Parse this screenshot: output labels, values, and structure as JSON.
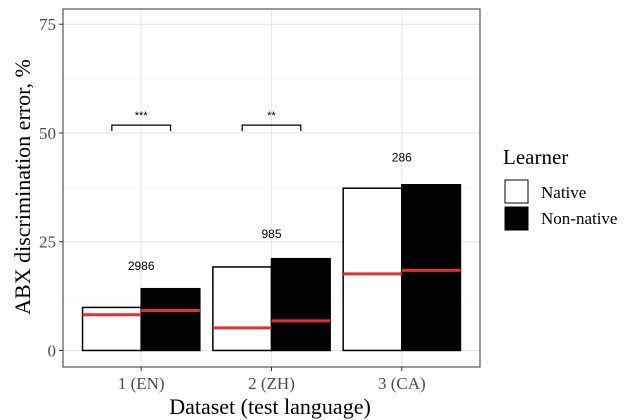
{
  "chart_data": {
    "type": "bar",
    "xlabel": "Dataset (test language)",
    "ylabel": "ABX discrimination error, %",
    "ylim": [
      -3.8,
      78.5
    ],
    "yticks": [
      0,
      25,
      50,
      75
    ],
    "categories": [
      "1 (EN)",
      "2 (ZH)",
      "3 (CA)"
    ],
    "series": [
      {
        "name": "Native",
        "fill": "#ffffff",
        "values": [
          9.9,
          19.2,
          37.3
        ],
        "medians": [
          8.2,
          5.2,
          17.6
        ]
      },
      {
        "name": "Non-native",
        "fill": "#000000",
        "values": [
          14.2,
          21.1,
          38.1
        ],
        "medians": [
          9.2,
          6.8,
          18.4
        ]
      }
    ],
    "count_labels": [
      {
        "text": "2986",
        "y": 18.5
      },
      {
        "text": "985",
        "y": 25.8
      },
      {
        "text": "286",
        "y": 43.4
      }
    ],
    "significance": [
      {
        "category_index": 0,
        "text": "***",
        "y": 51.8
      },
      {
        "category_index": 1,
        "text": "**",
        "y": 51.8
      }
    ],
    "legend": {
      "title": "Learner",
      "position": "right"
    },
    "grid": true,
    "median_color": "#e03030"
  }
}
